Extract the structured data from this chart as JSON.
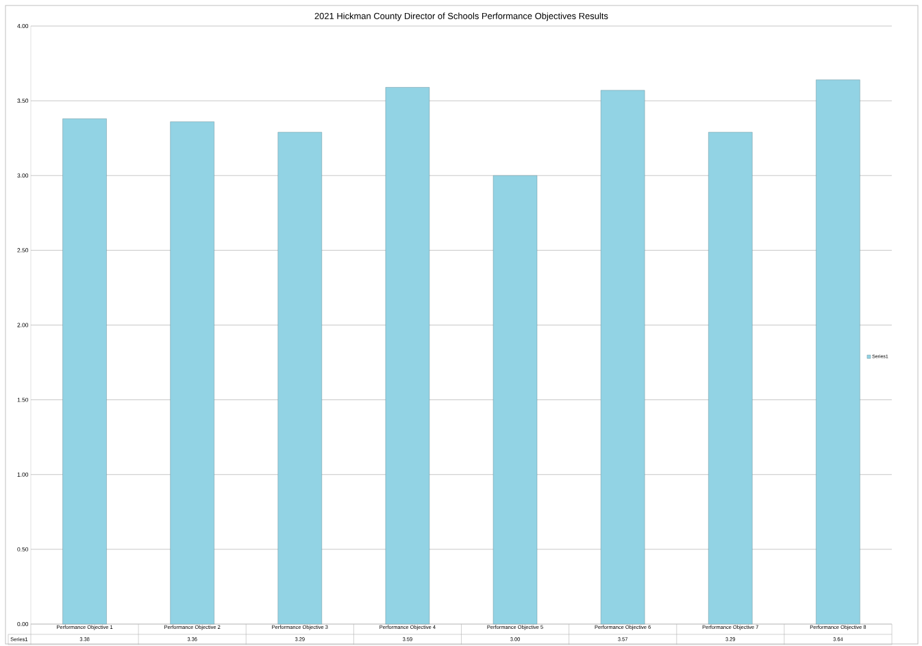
{
  "chart_data": {
    "type": "bar",
    "title": "2021 Hickman County Director of Schools Performance Objectives Results",
    "categories": [
      "Performance Objective 1",
      "Performance Objective 2",
      "Performance Objective 3",
      "Performance Objective 4",
      "Performance Objective 5",
      "Performance Objective  6",
      "Performance Objective 7",
      "Performance Objective 8"
    ],
    "series": [
      {
        "name": "Series1",
        "color": "#92d3e4",
        "values": [
          3.38,
          3.36,
          3.29,
          3.59,
          3.0,
          3.57,
          3.29,
          3.64
        ],
        "value_labels": [
          "3.38",
          "3.36",
          "3.29",
          "3.59",
          "3.00",
          "3.57",
          "3.29",
          "3.64"
        ]
      }
    ],
    "ylim": [
      0,
      4
    ],
    "yticks": [
      {
        "value": 0,
        "label": "0.00"
      },
      {
        "value": 0.5,
        "label": "0.50"
      },
      {
        "value": 1,
        "label": "1.00"
      },
      {
        "value": 1.5,
        "label": "1.50"
      },
      {
        "value": 2,
        "label": "2.00"
      },
      {
        "value": 2.5,
        "label": "2.50"
      },
      {
        "value": 3,
        "label": "3.00"
      },
      {
        "value": 3.5,
        "label": "3.50"
      },
      {
        "value": 4,
        "label": "4.00"
      }
    ],
    "grid": "y",
    "legend": "right"
  }
}
